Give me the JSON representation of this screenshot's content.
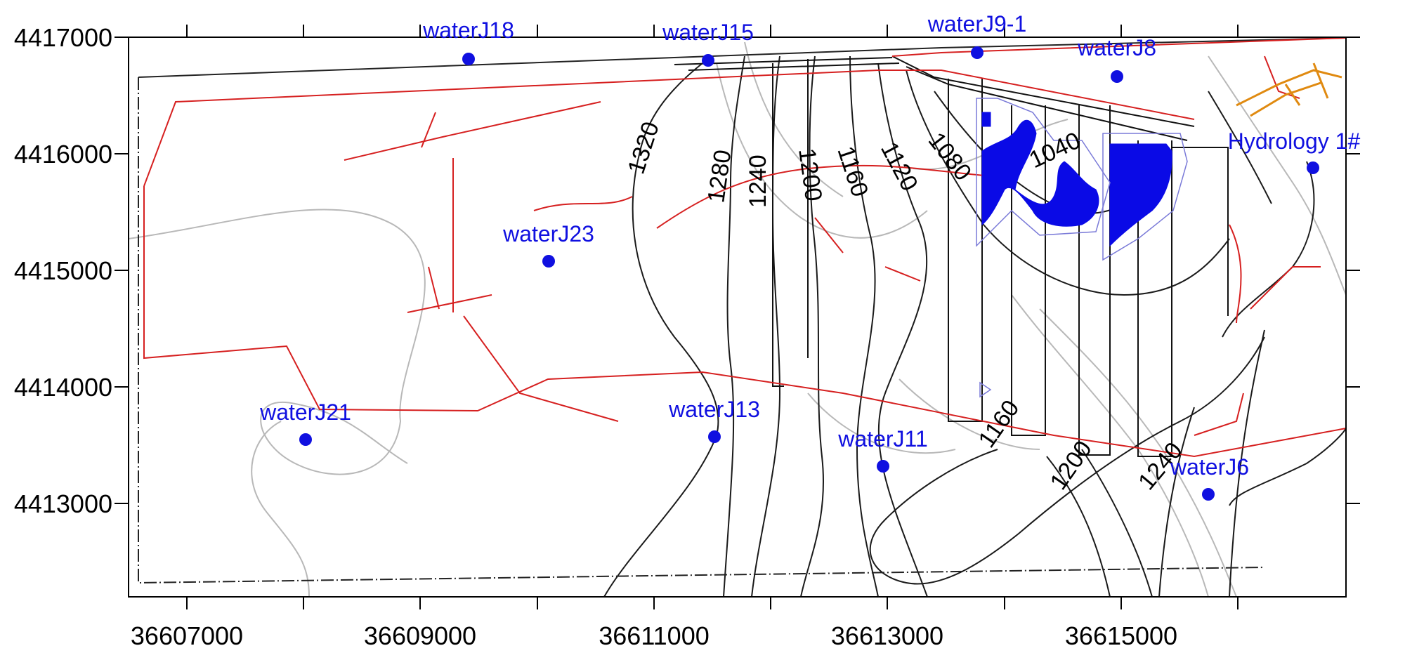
{
  "axes": {
    "x_ticks": [
      "36607000",
      "36609000",
      "36611000",
      "36613000",
      "36615000"
    ],
    "y_ticks": [
      "4417000",
      "4416000",
      "4415000",
      "4414000",
      "4413000"
    ]
  },
  "contour_labels": [
    "1320",
    "1280",
    "1240",
    "1200",
    "1160",
    "1120",
    "1080",
    "1040",
    "1160",
    "1200",
    "1240"
  ],
  "wells": [
    {
      "name": "waterJ18",
      "x": 36609500,
      "y": 4416820
    },
    {
      "name": "waterJ15",
      "x": 36611450,
      "y": 4416800
    },
    {
      "name": "waterJ9-1",
      "x": 36613800,
      "y": 4416880
    },
    {
      "name": "waterJ8",
      "x": 36615000,
      "y": 4416660
    },
    {
      "name": "Hydrology 1#",
      "x": 36616650,
      "y": 4415880
    },
    {
      "name": "waterJ23",
      "x": 36610200,
      "y": 4415080
    },
    {
      "name": "waterJ21",
      "x": 36608000,
      "y": 4413550
    },
    {
      "name": "waterJ13",
      "x": 36611550,
      "y": 4413570
    },
    {
      "name": "waterJ11",
      "x": 36613000,
      "y": 4413310
    },
    {
      "name": "waterJ6",
      "x": 36615750,
      "y": 4413070
    }
  ],
  "colors": {
    "well": "#1010e0",
    "fault": "#d62020",
    "contour_dark": "#1a1a1a",
    "contour_light": "#b8b8b8",
    "water_body": "#0a0ae6"
  }
}
